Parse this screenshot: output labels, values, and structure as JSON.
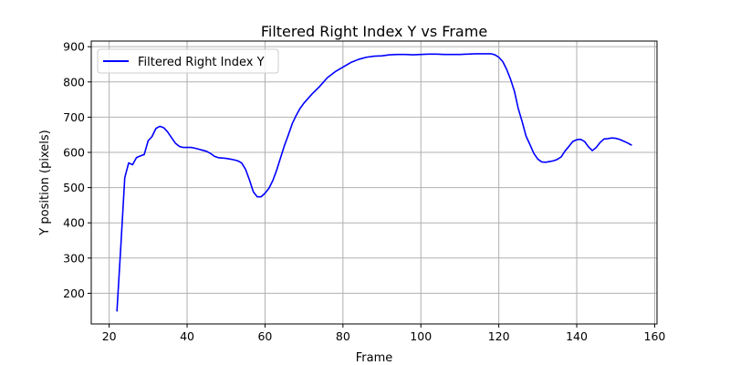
{
  "chart_data": {
    "type": "line",
    "title": "Filtered Right Index Y vs Frame",
    "xlabel": "Frame",
    "ylabel": "Y position (pixels)",
    "xlim": [
      15.4,
      160.6
    ],
    "ylim": [
      113,
      916
    ],
    "x_ticks": [
      20,
      40,
      60,
      80,
      100,
      120,
      140,
      160
    ],
    "y_ticks": [
      200,
      300,
      400,
      500,
      600,
      700,
      800,
      900
    ],
    "grid": true,
    "legend": {
      "placement": "top-left"
    },
    "series": [
      {
        "name": "Filtered Right Index Y",
        "color": "#0000ff",
        "x": [
          22,
          23,
          24,
          25,
          26,
          27,
          28,
          29,
          30,
          31,
          32,
          33,
          34,
          35,
          36,
          37,
          38,
          39,
          40,
          41,
          42,
          43,
          44,
          45,
          46,
          47,
          48,
          49,
          50,
          51,
          52,
          53,
          54,
          55,
          56,
          57,
          58,
          59,
          60,
          61,
          62,
          63,
          64,
          65,
          66,
          67,
          68,
          69,
          70,
          72,
          74,
          76,
          78,
          80,
          82,
          84,
          86,
          88,
          90,
          92,
          94,
          96,
          98,
          100,
          102,
          104,
          106,
          108,
          110,
          112,
          114,
          116,
          118,
          119,
          120,
          121,
          122,
          123,
          124,
          125,
          126,
          127,
          128,
          129,
          130,
          131,
          132,
          133,
          134,
          135,
          136,
          137,
          138,
          139,
          140,
          141,
          142,
          143,
          144,
          145,
          146,
          147,
          148,
          149,
          150,
          151,
          152,
          153,
          154
        ],
        "y": [
          150,
          335,
          528,
          570,
          565,
          585,
          590,
          594,
          633,
          645,
          668,
          674,
          670,
          658,
          642,
          626,
          617,
          614,
          614,
          614,
          612,
          609,
          606,
          603,
          597,
          589,
          585,
          584,
          583,
          581,
          579,
          576,
          570,
          552,
          522,
          488,
          474,
          474,
          484,
          498,
          520,
          550,
          585,
          620,
          650,
          682,
          705,
          725,
          740,
          765,
          787,
          812,
          829,
          842,
          855,
          864,
          870,
          873,
          874,
          877,
          878,
          878,
          877,
          878,
          879,
          879,
          878,
          878,
          878,
          879,
          880,
          880,
          880,
          877,
          870,
          858,
          836,
          808,
          774,
          724,
          687,
          646,
          622,
          597,
          581,
          573,
          572,
          574,
          576,
          580,
          587,
          604,
          617,
          631,
          636,
          637,
          631,
          616,
          605,
          614,
          628,
          638,
          639,
          641,
          640,
          637,
          632,
          627,
          621
        ]
      }
    ]
  }
}
